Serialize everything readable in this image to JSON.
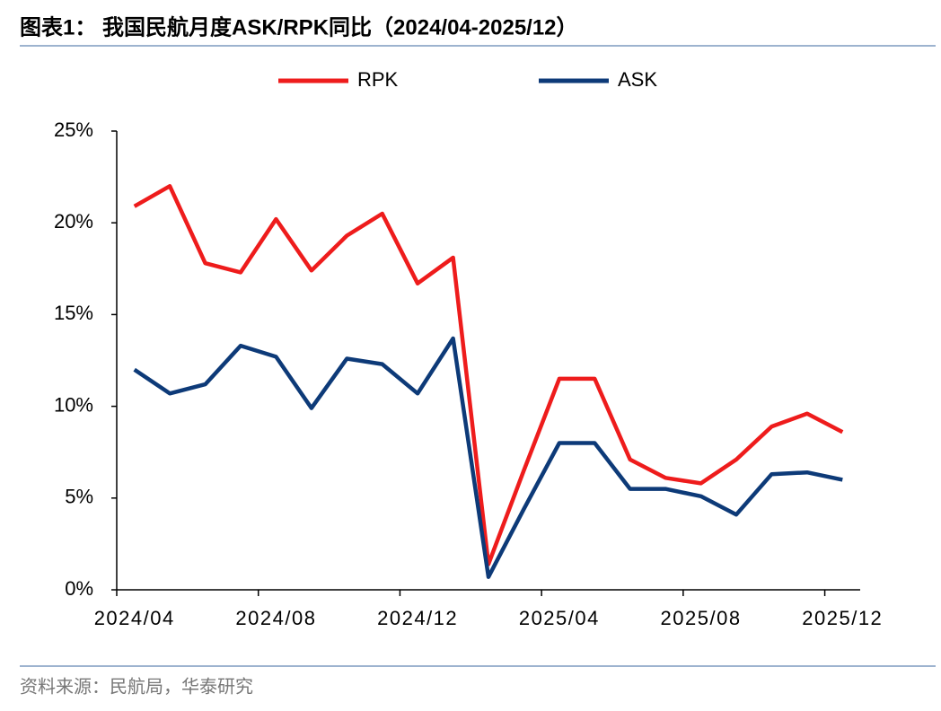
{
  "chart_data": {
    "type": "line",
    "title": "图表1：  我国民航月度ASK/RPK同比（2024/04-2025/12）",
    "source": "资料来源：民航局，华泰研究",
    "categories": [
      "2024/04",
      null,
      null,
      null,
      "2024/08",
      null,
      null,
      null,
      "2024/12",
      null,
      null,
      null,
      "2025/04",
      null,
      null,
      null,
      "2025/08",
      null,
      null,
      null,
      "2025/12"
    ],
    "series": [
      {
        "name": "RPK",
        "color": "#ee1c1c",
        "values": [
          20.9,
          22.0,
          17.8,
          17.3,
          20.2,
          17.4,
          19.3,
          20.5,
          16.7,
          18.1,
          1.4,
          6.5,
          11.5,
          11.5,
          7.1,
          6.1,
          5.8,
          7.1,
          8.9,
          9.6,
          8.6
        ]
      },
      {
        "name": "ASK",
        "color": "#0d3a78",
        "values": [
          12.0,
          10.7,
          11.2,
          13.3,
          12.7,
          9.9,
          12.6,
          12.3,
          10.7,
          13.7,
          0.7,
          4.4,
          8.0,
          8.0,
          5.5,
          5.5,
          5.1,
          4.1,
          6.3,
          6.4,
          6.0
        ]
      }
    ],
    "ylim": [
      0,
      25
    ],
    "yticks": [
      {
        "value": 0,
        "label": "0%"
      },
      {
        "value": 5,
        "label": "5%"
      },
      {
        "value": 10,
        "label": "10%"
      },
      {
        "value": 15,
        "label": "15%"
      },
      {
        "value": 20,
        "label": "20%"
      },
      {
        "value": 25,
        "label": "25%"
      }
    ],
    "legend": "top"
  }
}
